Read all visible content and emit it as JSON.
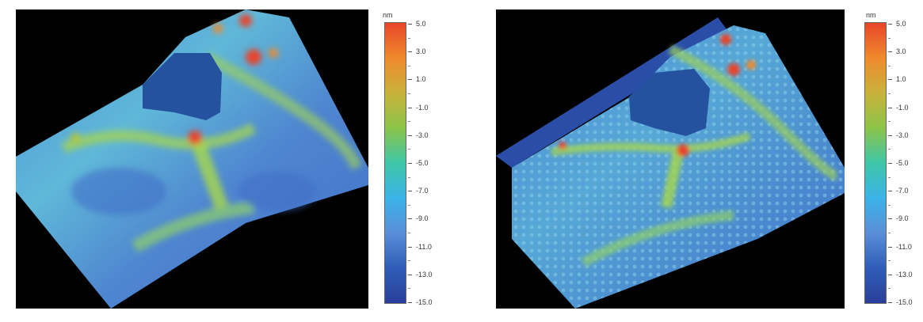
{
  "colorbar": {
    "unit": "nm",
    "labels": [
      "5.0",
      "3.0",
      "1.0",
      "-1.0",
      "-3.0",
      "-5.0",
      "-7.0",
      "-9.0",
      "-11.0",
      "-13.0",
      "-15.0"
    ],
    "colors": [
      "#e8452a",
      "#f08a2c",
      "#c9b23a",
      "#8cc44a",
      "#3fc6a8",
      "#3bb3e8",
      "#5a8ed8",
      "#2f5db8",
      "#2a3f9a"
    ]
  },
  "panels": [
    {
      "name": "left-topography",
      "background": "#000000"
    },
    {
      "name": "right-topography",
      "background": "#000000"
    }
  ]
}
